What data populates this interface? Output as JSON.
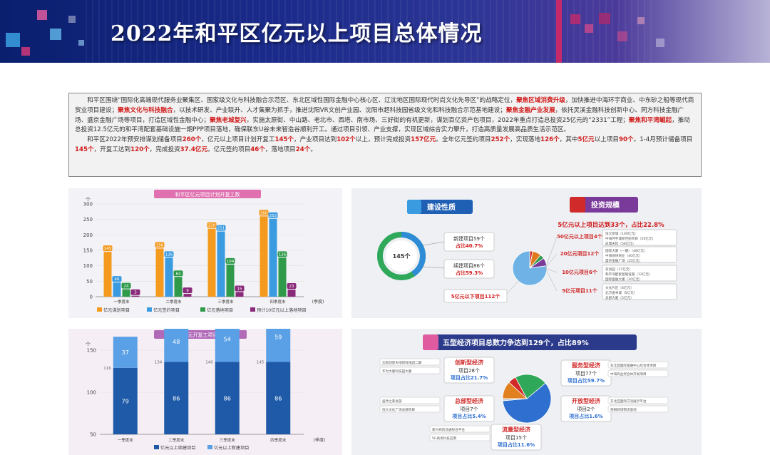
{
  "banner": {
    "title": "2022年和平区亿元以上项目总体情况"
  },
  "summary": {
    "p1_parts": [
      {
        "t": "和平区围绕“国际化高端现代服务业聚集区、国家级文化与科技融合示范区、东北区域性国际金融中心核心区、辽沈地区国际现代时尚文化先导区”的战略定位，",
        "h": false
      },
      {
        "t": "聚焦区域消费升级",
        "h": true
      },
      {
        "t": "，加快推进中海环宇商业、中东砂之船等现代商贸业项目建设；",
        "h": false
      },
      {
        "t": "聚焦文化与科技融合",
        "h": true
      },
      {
        "t": "，以技术研发、产业联升、人才集聚为抓手，推进沈阳VR文创产业园、沈阳市超科技园省级文化和科技融合示范基地建设；",
        "h": false
      },
      {
        "t": "聚焦金融产业发展",
        "h": true
      },
      {
        "t": "，依托灵溪金融科技创新中心、同方科技金融广场、盛京金融广场等项目，打造区域性金融中心；",
        "h": false
      },
      {
        "t": "聚焦老城复兴",
        "h": true
      },
      {
        "t": "，实施太原街、中山路、老北市、西塔、南市场、三好街的有机更新，谋划百亿资产包项目，2022年重点打造总投资25亿元的“2331”工程；",
        "h": false
      },
      {
        "t": "聚焦和平湾崛起",
        "h": true
      },
      {
        "t": "，推动总投资12.5亿元的和平湾配套基础设施一期PPP项目落地，确保联东U谷未来智造谷顺利开工。通过项目引领、产业支撑，实现区域综合实力攀升，打造高质量发展高品质生活示范区。",
        "h": false
      }
    ],
    "p2_parts": [
      {
        "t": "和平区2022年预安排谋划储备项目",
        "h": false
      },
      {
        "t": "260个",
        "h": true
      },
      {
        "t": "，亿元以上项目计划开复工",
        "h": false
      },
      {
        "t": "145个",
        "h": true
      },
      {
        "t": "，产业项目达到",
        "h": false
      },
      {
        "t": "102个",
        "h": true
      },
      {
        "t": "以上，预计完成投资",
        "h": false
      },
      {
        "t": "157亿元",
        "h": true
      },
      {
        "t": "。全年亿元签约项目",
        "h": false
      },
      {
        "t": "252个",
        "h": true
      },
      {
        "t": "，实现落地",
        "h": false
      },
      {
        "t": "126个",
        "h": true
      },
      {
        "t": "，其中",
        "h": false
      },
      {
        "t": "5亿元",
        "h": true
      },
      {
        "t": "以上项目",
        "h": false
      },
      {
        "t": "90个",
        "h": true
      },
      {
        "t": "。1-4月预计储备项目",
        "h": false
      },
      {
        "t": "145个",
        "h": true
      },
      {
        "t": "，开复工达到",
        "h": false
      },
      {
        "t": "120个",
        "h": true
      },
      {
        "t": "，完成投资",
        "h": false
      },
      {
        "t": "37.4亿元",
        "h": true
      },
      {
        "t": "。亿元签约项目",
        "h": false
      },
      {
        "t": "46个",
        "h": true
      },
      {
        "t": "，落地项目",
        "h": false
      },
      {
        "t": "24个",
        "h": true
      },
      {
        "t": "。",
        "h": false
      }
    ]
  },
  "chart_data": [
    {
      "type": "bar",
      "title": "和平区亿元项目计划开复工数",
      "ylabel": "个",
      "xlabel": "(季度)",
      "categories": [
        "一季度末",
        "二季度末",
        "三季度末",
        "四季度末"
      ],
      "ylim": [
        0,
        300
      ],
      "yticks": [
        0,
        50,
        100,
        150,
        200,
        250,
        300
      ],
      "series": [
        {
          "name": "亿元谋划项目",
          "color": "#f39a1f",
          "values": [
            145,
            156,
            220,
            260
          ]
        },
        {
          "name": "亿元签约项目",
          "color": "#3a9be0",
          "values": [
            46,
            126,
            211,
            252
          ]
        },
        {
          "name": "亿元落地项目",
          "color": "#2f9a4a",
          "values": [
            24,
            64,
            104,
            126
          ]
        },
        {
          "name": "预计10亿元以上落地项目",
          "color": "#8a2a7a",
          "values": [
            3,
            9,
            15,
            23
          ]
        }
      ]
    },
    {
      "type": "bar",
      "title": "和平区亿元开复工项目计划数",
      "ylabel": "个",
      "xlabel": "(季度)",
      "categories": [
        "一季度末",
        "二季度末",
        "三季度末",
        "四季度末"
      ],
      "ylim": [
        50,
        150
      ],
      "yticks": [
        50,
        100,
        150
      ],
      "series": [
        {
          "name": "亿元以上续建项目",
          "color": "#1e5aa8",
          "values": [
            79,
            86,
            86,
            86
          ]
        },
        {
          "name": "亿元以上新建项目",
          "color": "#5aa0e6",
          "values": [
            37,
            48,
            54,
            59
          ]
        }
      ],
      "totals": [
        116,
        134,
        140,
        145
      ]
    },
    {
      "type": "pie",
      "title": "建设性质",
      "center_label": "145个",
      "slices": [
        {
          "label": "新建项目59个",
          "share": "占比40.7%",
          "value": 59,
          "color": "#2e8bd6"
        },
        {
          "label": "续建项目86个",
          "share": "占比59.3%",
          "value": 86,
          "color": "#2fa85a"
        }
      ]
    },
    {
      "type": "pie",
      "title": "投资规模",
      "headline": "5亿元以上项目达到33个，占比22.8%",
      "slices": [
        {
          "label": "50亿元以上项目4个",
          "value": 4,
          "color": "#d12a2a"
        },
        {
          "label": "20亿元项目12个",
          "value": 12,
          "color": "#e07a1f"
        },
        {
          "label": "10亿元项目6个",
          "value": 6,
          "color": "#2f9a4a"
        },
        {
          "label": "5亿元项目11个",
          "value": 11,
          "color": "#7a3a9a"
        },
        {
          "label": "5亿元以下项目112个",
          "value": 112,
          "color": "#6fb3e6"
        }
      ]
    },
    {
      "type": "pie",
      "title": "五型经济项目总数力争达到129个，占比89%",
      "slices": [
        {
          "label": "创新型经济",
          "count": "项目28个",
          "share": "项目占比21.7%",
          "value": 28,
          "color": "#2fa85a"
        },
        {
          "label": "服务型经济",
          "count": "项目77个",
          "share": "项目占比59.7%",
          "value": 77,
          "color": "#2e6fd0"
        },
        {
          "label": "开放型经济",
          "count": "项目2个",
          "share": "项目占比1.6%",
          "value": 2,
          "color": "#c8c8c8"
        },
        {
          "label": "流量型经济",
          "count": "项目15个",
          "share": "项目占比11.6%",
          "value": 15,
          "color": "#e0801f"
        },
        {
          "label": "总部型经济",
          "count": "项目7个",
          "share": "项目占比5.4%",
          "value": 7,
          "color": "#d12a2a"
        }
      ]
    }
  ],
  "panel_titles": {
    "nature": "建设性质",
    "scale": "投资规模",
    "five": "五型经济项目总数力争达到129个，占比89%"
  },
  "scale_sub": {
    "s50": [
      "恒大新城（100亿元）",
      "中海环宇城新世纪项目（56亿元）",
      "玖瑞天阶（56亿元）"
    ],
    "s20": [
      "国际大厦（一期）（48亿元）",
      "中海地块商业（40亿元）",
      "盛京金融广场（25亿元）"
    ],
    "s10": [
      "双创园（17亿元）",
      "和平湾配套基础设施（12亿元）",
      "国际金融大厦（10亿元）"
    ],
    "s5": [
      "文化片区（6亿元）",
      "北方图书城（5亿元）",
      "总部大厦（5亿元）"
    ]
  },
  "five_sub": {
    "innovation": [
      "沈阳创新天地新科技园二期",
      "华为大厦科技园大厦"
    ],
    "headquarter": [
      "居然之家总部",
      "恒大文化广场总部项目"
    ],
    "flow": [
      "新兴商贸流通综合平台",
      "5G商务科技应用"
    ],
    "service": [
      "东北亚国际金融中心综合体项目",
      "中海商业综合体开发项目"
    ],
    "open": [
      "东北亚国际交流展示平台",
      "保税跨境物流基地"
    ]
  }
}
